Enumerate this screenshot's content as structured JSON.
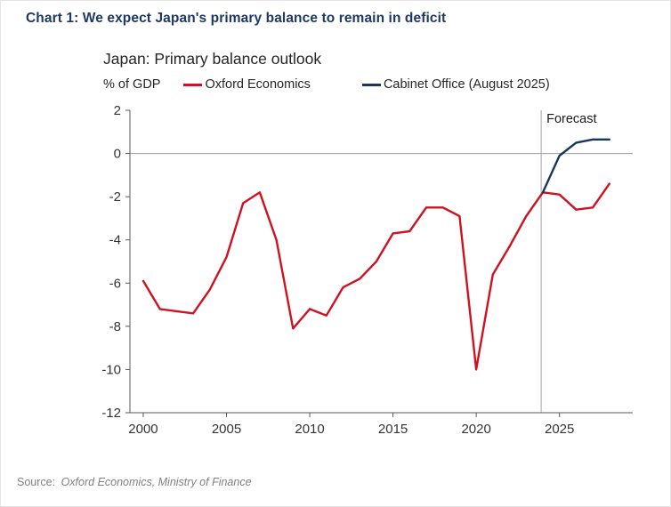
{
  "page": {
    "heading": "Chart 1: We expect Japan's primary balance to remain in deficit",
    "source_prefix": "Source:",
    "source_text": "Oxford Economics, Ministry of Finance"
  },
  "chart": {
    "title": "Japan: Primary balance outlook",
    "ylabel": "% of GDP",
    "legend": [
      {
        "label": "Oxford Economics",
        "color": "#d0111f"
      },
      {
        "label": "Cabinet Office (August 2025)",
        "color": "#17375e"
      }
    ]
  },
  "chart_data": {
    "type": "line",
    "title": "Japan: Primary balance outlook",
    "ylabel": "% of GDP",
    "ylim": [
      -12,
      2
    ],
    "yticks": [
      2,
      0,
      -2,
      -4,
      -6,
      -8,
      -10,
      -12
    ],
    "xlim": [
      1999.2,
      2029.4
    ],
    "xticks": [
      2000,
      2005,
      2010,
      2015,
      2020,
      2025
    ],
    "forecast_x": 2023.9,
    "forecast_label": "Forecast",
    "grid": "zero-line-only",
    "legend_position": "top",
    "series": [
      {
        "name": "Oxford Economics",
        "color": "#d0111f",
        "x": [
          2000,
          2001,
          2002,
          2003,
          2004,
          2005,
          2006,
          2007,
          2008,
          2009,
          2010,
          2011,
          2012,
          2013,
          2014,
          2015,
          2016,
          2017,
          2018,
          2019,
          2020,
          2021,
          2022,
          2023,
          2024,
          2025,
          2026,
          2027,
          2028
        ],
        "values": [
          -5.9,
          -7.2,
          -7.3,
          -7.4,
          -6.3,
          -4.8,
          -2.3,
          -1.8,
          -4.0,
          -8.1,
          -7.2,
          -7.5,
          -6.2,
          -5.8,
          -5.0,
          -3.7,
          -3.6,
          -2.5,
          -2.5,
          -2.9,
          -10.0,
          -5.6,
          -4.3,
          -2.9,
          -1.8,
          -1.9,
          -2.6,
          -2.5,
          -1.4
        ]
      },
      {
        "name": "Cabinet Office (August 2025)",
        "color": "#17375e",
        "x": [
          2024,
          2025,
          2026,
          2027,
          2028
        ],
        "values": [
          -1.8,
          -0.1,
          0.5,
          0.65,
          0.65
        ]
      }
    ]
  }
}
